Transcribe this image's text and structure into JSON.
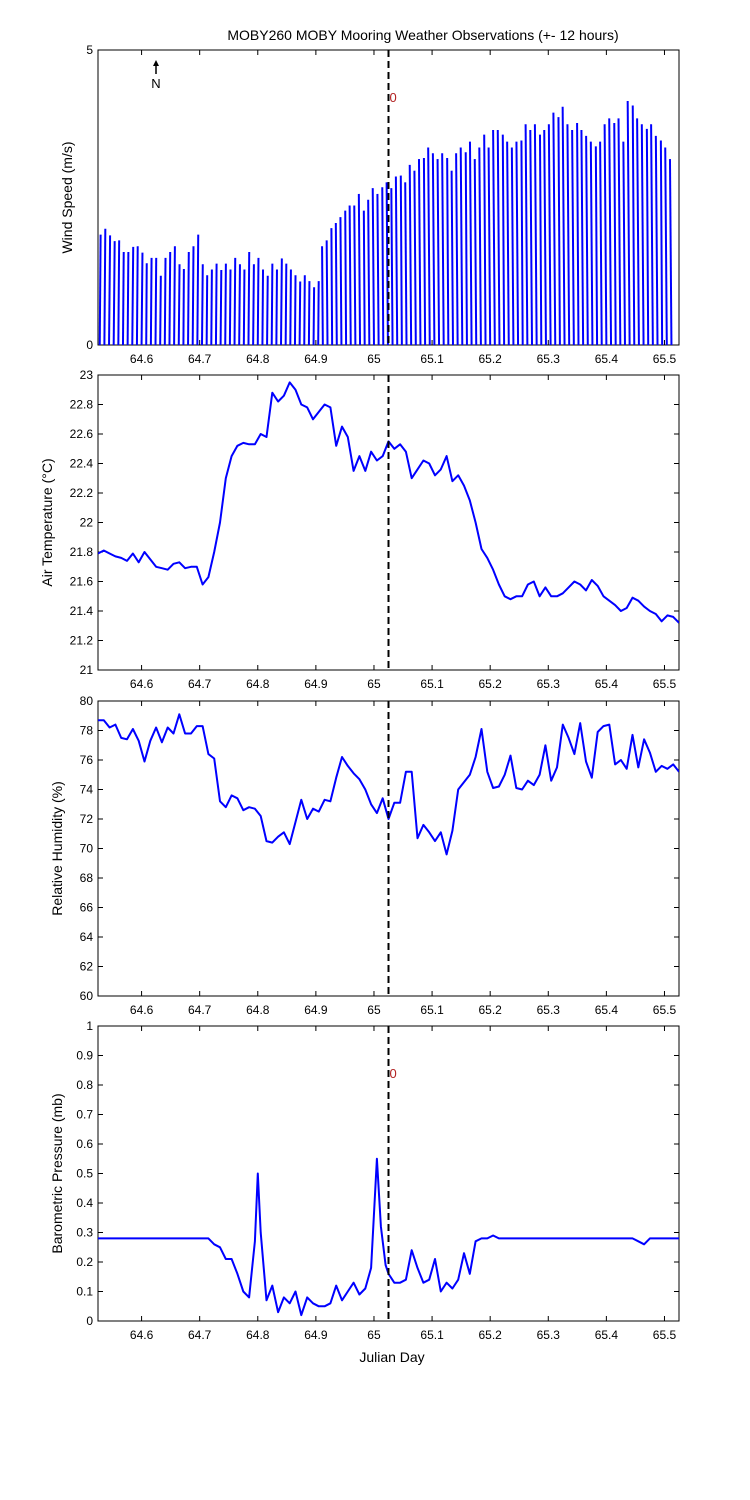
{
  "figure": {
    "title": "MOBY260 MOBY Mooring Weather Observations (+- 12 hours)",
    "xlabel": "Julian Day",
    "x_ticks": [
      64.6,
      64.7,
      64.8,
      64.9,
      65,
      65.1,
      65.2,
      65.3,
      65.4,
      65.5
    ],
    "xlim": [
      64.525,
      65.525
    ],
    "current_time_marker": 65.025,
    "compass_label": "N",
    "line_color": "#0000ff",
    "marker_color": "#000000",
    "annotation_color": "#b22222"
  },
  "chart_data": [
    {
      "type": "line",
      "subtype": "wind-stick",
      "ylabel": "Wind Speed (m/s)",
      "ylim": [
        0,
        5
      ],
      "y_ticks": [
        0,
        5
      ],
      "annotation": "0",
      "annotation_y": 4.2,
      "series": [
        {
          "x": [
            64.528,
            64.536,
            64.544,
            64.552,
            64.56,
            64.568,
            64.576,
            64.584,
            64.592,
            64.6,
            64.608,
            64.616,
            64.624,
            64.632,
            64.64,
            64.648,
            64.656,
            64.664,
            64.672,
            64.68,
            64.688,
            64.696,
            64.704,
            64.712,
            64.72,
            64.728,
            64.736,
            64.744,
            64.752,
            64.76,
            64.768,
            64.776,
            64.784,
            64.792,
            64.8,
            64.808,
            64.816,
            64.824,
            64.832,
            64.84,
            64.848,
            64.856,
            64.864,
            64.872,
            64.88,
            64.888,
            64.896,
            64.904,
            64.912,
            64.92,
            64.928,
            64.936,
            64.944,
            64.952,
            64.96,
            64.968,
            64.976,
            64.984,
            64.992,
            65.0,
            65.008,
            65.016,
            65.024,
            65.032,
            65.04,
            65.048,
            65.056,
            65.064,
            65.072,
            65.08,
            65.088,
            65.096,
            65.104,
            65.112,
            65.12,
            65.128,
            65.136,
            65.144,
            65.152,
            65.16,
            65.168,
            65.176,
            65.184,
            65.192,
            65.2,
            65.208,
            65.216,
            65.224,
            65.232,
            65.24,
            65.248,
            65.256,
            65.264,
            65.272,
            65.28,
            65.288,
            65.296,
            65.304,
            65.312,
            65.32,
            65.328,
            65.336,
            65.344,
            65.352,
            65.36,
            65.368,
            65.376,
            65.384,
            65.392,
            65.4,
            65.408,
            65.416,
            65.424,
            65.432,
            65.44,
            65.448,
            65.456,
            65.464,
            65.472,
            65.48,
            65.488,
            65.496,
            65.504,
            65.512
          ],
          "speed": [
            1.9,
            2.0,
            1.9,
            1.8,
            1.8,
            1.6,
            1.6,
            1.7,
            1.7,
            1.6,
            1.4,
            1.5,
            1.5,
            1.2,
            1.5,
            1.6,
            1.7,
            1.4,
            1.3,
            1.6,
            1.7,
            1.9,
            1.4,
            1.2,
            1.3,
            1.4,
            1.3,
            1.4,
            1.3,
            1.5,
            1.4,
            1.3,
            1.6,
            1.4,
            1.5,
            1.3,
            1.2,
            1.4,
            1.3,
            1.5,
            1.4,
            1.3,
            1.2,
            1.1,
            1.2,
            1.1,
            1.0,
            1.1,
            1.7,
            1.8,
            2.0,
            2.1,
            2.2,
            2.3,
            2.4,
            2.4,
            2.6,
            2.3,
            2.5,
            2.7,
            2.6,
            2.7,
            2.8,
            2.7,
            2.9,
            2.9,
            2.8,
            3.1,
            3.0,
            3.2,
            3.2,
            3.4,
            3.3,
            3.2,
            3.3,
            3.2,
            3.0,
            3.3,
            3.4,
            3.3,
            3.5,
            3.2,
            3.4,
            3.6,
            3.4,
            3.7,
            3.7,
            3.6,
            3.5,
            3.4,
            3.5,
            3.5,
            3.8,
            3.7,
            3.8,
            3.6,
            3.7,
            3.8,
            4.0,
            3.9,
            4.1,
            3.8,
            3.7,
            3.8,
            3.7,
            3.6,
            3.5,
            3.4,
            3.5,
            3.8,
            3.9,
            3.8,
            3.9,
            3.5,
            4.2,
            4.1,
            3.9,
            3.8,
            3.7,
            3.8,
            3.6,
            3.5,
            3.4,
            3.2
          ],
          "direction_deg": [
            10,
            10,
            12,
            12,
            10,
            10,
            10,
            12,
            10,
            12,
            8,
            10,
            10,
            12,
            10,
            10,
            10,
            12,
            8,
            10,
            10,
            10,
            12,
            10,
            10,
            10,
            12,
            10,
            10,
            10,
            12,
            10,
            10,
            12,
            10,
            10,
            12,
            10,
            10,
            12,
            10,
            10,
            10,
            12,
            10,
            10,
            12,
            10,
            350,
            350,
            352,
            350,
            350,
            352,
            350,
            350,
            350,
            352,
            350,
            350,
            350,
            352,
            350,
            350,
            350,
            352,
            350,
            350,
            350,
            350,
            352,
            350,
            350,
            350,
            350,
            352,
            350,
            350,
            350,
            352,
            350,
            350,
            350,
            352,
            350,
            350,
            350,
            352,
            350,
            350,
            350,
            352,
            350,
            350,
            350,
            352,
            350,
            350,
            350,
            352,
            350,
            350,
            350,
            352,
            350,
            350,
            350,
            352,
            350,
            350,
            350,
            352,
            350,
            350,
            350,
            352,
            350,
            350,
            352,
            350,
            350,
            352,
            350,
            350
          ]
        }
      ]
    },
    {
      "type": "line",
      "ylabel": "Air Temperature (°C)",
      "ylim": [
        21,
        23
      ],
      "y_ticks": [
        21,
        21.2,
        21.4,
        21.6,
        21.8,
        22,
        22.2,
        22.4,
        22.6,
        22.8,
        23
      ],
      "series": [
        {
          "x": [
            64.525,
            64.535,
            64.545,
            64.555,
            64.565,
            64.575,
            64.585,
            64.595,
            64.605,
            64.615,
            64.625,
            64.635,
            64.645,
            64.655,
            64.665,
            64.675,
            64.685,
            64.695,
            64.705,
            64.715,
            64.725,
            64.735,
            64.745,
            64.755,
            64.765,
            64.775,
            64.785,
            64.795,
            64.805,
            64.815,
            64.825,
            64.835,
            64.845,
            64.855,
            64.865,
            64.875,
            64.885,
            64.895,
            64.905,
            64.915,
            64.925,
            64.935,
            64.945,
            64.955,
            64.965,
            64.975,
            64.985,
            64.995,
            65.005,
            65.015,
            65.025,
            65.035,
            65.045,
            65.055,
            65.065,
            65.075,
            65.085,
            65.095,
            65.105,
            65.115,
            65.125,
            65.135,
            65.145,
            65.155,
            65.165,
            65.175,
            65.185,
            65.195,
            65.205,
            65.215,
            65.225,
            65.235,
            65.245,
            65.255,
            65.265,
            65.275,
            65.285,
            65.295,
            65.305,
            65.315,
            65.325,
            65.335,
            65.345,
            65.355,
            65.365,
            65.375,
            65.385,
            65.395,
            65.405,
            65.415,
            65.425,
            65.435,
            65.445,
            65.455,
            65.465,
            65.475,
            65.485,
            65.495,
            65.505,
            65.515,
            65.525
          ],
          "values": [
            21.79,
            21.81,
            21.79,
            21.77,
            21.76,
            21.74,
            21.79,
            21.73,
            21.8,
            21.75,
            21.7,
            21.69,
            21.68,
            21.72,
            21.73,
            21.69,
            21.7,
            21.7,
            21.58,
            21.63,
            21.8,
            22.0,
            22.3,
            22.45,
            22.52,
            22.54,
            22.53,
            22.53,
            22.6,
            22.58,
            22.88,
            22.82,
            22.86,
            22.95,
            22.9,
            22.8,
            22.78,
            22.7,
            22.75,
            22.8,
            22.78,
            22.52,
            22.65,
            22.58,
            22.35,
            22.45,
            22.35,
            22.48,
            22.42,
            22.45,
            22.55,
            22.5,
            22.53,
            22.48,
            22.3,
            22.36,
            22.42,
            22.4,
            22.32,
            22.36,
            22.45,
            22.28,
            22.32,
            22.25,
            22.15,
            22.0,
            21.82,
            21.76,
            21.68,
            21.58,
            21.5,
            21.48,
            21.5,
            21.5,
            21.58,
            21.6,
            21.5,
            21.56,
            21.5,
            21.5,
            21.52,
            21.56,
            21.6,
            21.58,
            21.54,
            21.61,
            21.57,
            21.5,
            21.47,
            21.44,
            21.4,
            21.42,
            21.49,
            21.47,
            21.43,
            21.4,
            21.38,
            21.33,
            21.37,
            21.36,
            21.32
          ]
        }
      ]
    },
    {
      "type": "line",
      "ylabel": "Relative Humidity (%)",
      "ylim": [
        60,
        80
      ],
      "y_ticks": [
        60,
        62,
        64,
        66,
        68,
        70,
        72,
        74,
        76,
        78,
        80
      ],
      "series": [
        {
          "x": [
            64.525,
            64.535,
            64.545,
            64.555,
            64.565,
            64.575,
            64.585,
            64.595,
            64.605,
            64.615,
            64.625,
            64.635,
            64.645,
            64.655,
            64.665,
            64.675,
            64.685,
            64.695,
            64.705,
            64.715,
            64.725,
            64.735,
            64.745,
            64.755,
            64.765,
            64.775,
            64.785,
            64.795,
            64.805,
            64.815,
            64.825,
            64.835,
            64.845,
            64.855,
            64.865,
            64.875,
            64.885,
            64.895,
            64.905,
            64.915,
            64.925,
            64.935,
            64.945,
            64.955,
            64.965,
            64.975,
            64.985,
            64.995,
            65.005,
            65.015,
            65.025,
            65.035,
            65.045,
            65.055,
            65.065,
            65.075,
            65.085,
            65.095,
            65.105,
            65.115,
            65.125,
            65.135,
            65.145,
            65.155,
            65.165,
            65.175,
            65.185,
            65.195,
            65.205,
            65.215,
            65.225,
            65.235,
            65.245,
            65.255,
            65.265,
            65.275,
            65.285,
            65.295,
            65.305,
            65.315,
            65.325,
            65.335,
            65.345,
            65.355,
            65.365,
            65.375,
            65.385,
            65.395,
            65.405,
            65.415,
            65.425,
            65.435,
            65.445,
            65.455,
            65.465,
            65.475,
            65.485,
            65.495,
            65.505,
            65.515,
            65.525
          ],
          "values": [
            78.7,
            78.7,
            78.2,
            78.4,
            77.5,
            77.4,
            78.1,
            77.3,
            75.9,
            77.3,
            78.2,
            77.2,
            78.2,
            77.8,
            79.1,
            77.8,
            77.8,
            78.3,
            78.3,
            76.4,
            76.1,
            73.2,
            72.8,
            73.6,
            73.4,
            72.6,
            72.8,
            72.7,
            72.2,
            70.5,
            70.4,
            70.8,
            71.1,
            70.3,
            71.8,
            73.3,
            72.0,
            72.7,
            72.5,
            73.3,
            73.2,
            74.8,
            76.2,
            75.6,
            75.1,
            74.7,
            74.0,
            73.0,
            72.4,
            73.4,
            72.0,
            73.1,
            73.1,
            75.2,
            75.2,
            70.7,
            71.6,
            71.1,
            70.5,
            71.1,
            69.6,
            71.2,
            74.0,
            74.5,
            75.0,
            76.2,
            78.1,
            75.2,
            74.1,
            74.2,
            75.0,
            76.3,
            74.1,
            74.0,
            74.6,
            74.3,
            75.0,
            77.0,
            74.6,
            75.5,
            78.4,
            77.5,
            76.4,
            78.5,
            75.9,
            74.8,
            77.9,
            78.3,
            78.4,
            75.7,
            76.0,
            75.4,
            77.7,
            75.5,
            77.4,
            76.5,
            75.2,
            75.6,
            75.4,
            75.7,
            75.2
          ]
        }
      ]
    },
    {
      "type": "line",
      "ylabel": "Barometric Pressure (mb)",
      "ylim": [
        0,
        1
      ],
      "y_ticks": [
        0,
        0.1,
        0.2,
        0.3,
        0.4,
        0.5,
        0.6,
        0.7,
        0.8,
        0.9,
        1
      ],
      "annotation": "0",
      "annotation_y": 0.84,
      "series": [
        {
          "x": [
            64.525,
            64.545,
            64.565,
            64.585,
            64.605,
            64.625,
            64.645,
            64.665,
            64.685,
            64.705,
            64.715,
            64.725,
            64.735,
            64.745,
            64.755,
            64.765,
            64.775,
            64.785,
            64.795,
            64.8,
            64.805,
            64.815,
            64.825,
            64.835,
            64.845,
            64.855,
            64.865,
            64.875,
            64.885,
            64.895,
            64.905,
            64.915,
            64.925,
            64.935,
            64.945,
            64.955,
            64.965,
            64.975,
            64.985,
            64.995,
            65.005,
            65.012,
            65.02,
            65.025,
            65.035,
            65.045,
            65.055,
            65.065,
            65.075,
            65.085,
            65.095,
            65.105,
            65.115,
            65.125,
            65.135,
            65.145,
            65.155,
            65.165,
            65.175,
            65.185,
            65.195,
            65.205,
            65.215,
            65.245,
            65.285,
            65.325,
            65.365,
            65.405,
            65.445,
            65.455,
            65.465,
            65.475,
            65.495,
            65.525
          ],
          "values": [
            0.28,
            0.28,
            0.28,
            0.28,
            0.28,
            0.28,
            0.28,
            0.28,
            0.28,
            0.28,
            0.28,
            0.26,
            0.25,
            0.21,
            0.21,
            0.16,
            0.1,
            0.08,
            0.27,
            0.5,
            0.3,
            0.07,
            0.12,
            0.03,
            0.08,
            0.06,
            0.1,
            0.02,
            0.08,
            0.06,
            0.05,
            0.05,
            0.06,
            0.12,
            0.07,
            0.1,
            0.13,
            0.09,
            0.11,
            0.18,
            0.55,
            0.32,
            0.19,
            0.16,
            0.13,
            0.13,
            0.14,
            0.24,
            0.18,
            0.13,
            0.14,
            0.21,
            0.1,
            0.13,
            0.11,
            0.14,
            0.23,
            0.16,
            0.27,
            0.28,
            0.28,
            0.29,
            0.28,
            0.28,
            0.28,
            0.28,
            0.28,
            0.28,
            0.28,
            0.27,
            0.26,
            0.28,
            0.28,
            0.28
          ]
        }
      ]
    }
  ]
}
